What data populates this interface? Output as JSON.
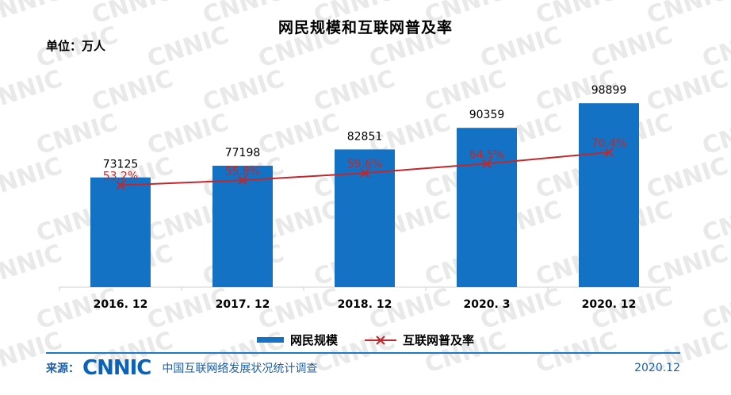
{
  "title": "网民规模和互联网普及率",
  "unit_label": "单位：万人",
  "watermark_text": "CNNIC",
  "footer": {
    "source_label": "来源：",
    "logo_text": "CNNIC",
    "survey_name": "中国互联网络发展状况统计调查",
    "date": "2020.12"
  },
  "colors": {
    "bar": "#1472c4",
    "line": "#c0282d",
    "watermark": "#e9e9e9"
  },
  "chart_data": {
    "type": "bar",
    "title": "网民规模和互联网普及率",
    "categories": [
      "2016. 12",
      "2017. 12",
      "2018. 12",
      "2020. 3",
      "2020. 12"
    ],
    "series": [
      {
        "name": "网民规模",
        "type": "bar",
        "values": [
          73125,
          77198,
          82851,
          90359,
          98899
        ],
        "value_labels": [
          "73125",
          "77198",
          "82851",
          "90359",
          "98899"
        ],
        "color": "#1472c4"
      },
      {
        "name": "互联网普及率",
        "type": "line",
        "marker": "x",
        "values": [
          53.2,
          55.8,
          59.6,
          64.5,
          70.4
        ],
        "value_labels": [
          "53.2%",
          "55.8%",
          "59.6%",
          "64.5%",
          "70.4%"
        ],
        "color": "#c0282d"
      }
    ],
    "bar_baseline": 35000,
    "bar_ylim": [
      35000,
      99500
    ],
    "line_ylim": [
      0,
      140
    ],
    "legend_position": "bottom",
    "grid": false
  }
}
